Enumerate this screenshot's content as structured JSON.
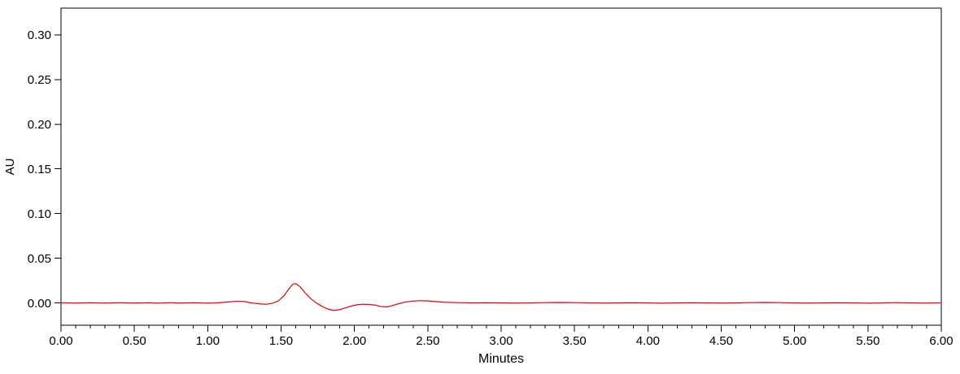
{
  "page": {
    "background_color": "#ffffff",
    "axis_color": "#000000",
    "text_color": "#000000"
  },
  "chart_data": {
    "type": "line",
    "title": "",
    "xlabel": "Minutes",
    "ylabel": "AU",
    "xlim": [
      0,
      6
    ],
    "ylim": [
      -0.025,
      0.33
    ],
    "grid": false,
    "legend": "none",
    "x_major_ticks": {
      "values": [
        0,
        0.5,
        1,
        1.5,
        2,
        2.5,
        3,
        3.5,
        4,
        4.5,
        5,
        5.5,
        6
      ],
      "labels": [
        "0.00",
        "0.50",
        "1.00",
        "1.50",
        "2.00",
        "2.50",
        "3.00",
        "3.50",
        "4.00",
        "4.50",
        "5.00",
        "5.50",
        "6.00"
      ]
    },
    "x_minor_step": 0.1,
    "y_major_ticks": {
      "values": [
        0,
        0.05,
        0.1,
        0.15,
        0.2,
        0.25,
        0.3
      ],
      "labels": [
        "0.00",
        "0.05",
        "0.10",
        "0.15",
        "0.20",
        "0.25",
        "0.30"
      ]
    },
    "series": [
      {
        "name": "detector-trace",
        "color": "#e60000",
        "points": [
          [
            0.0,
            0.0
          ],
          [
            0.05,
            0.0
          ],
          [
            0.1,
            -0.0003
          ],
          [
            0.15,
            0.0
          ],
          [
            0.2,
            0.0002
          ],
          [
            0.25,
            0.0
          ],
          [
            0.3,
            -0.0002
          ],
          [
            0.35,
            0.0
          ],
          [
            0.4,
            0.0003
          ],
          [
            0.45,
            0.0
          ],
          [
            0.5,
            -0.0002
          ],
          [
            0.55,
            0.0
          ],
          [
            0.6,
            0.0002
          ],
          [
            0.65,
            -0.0003
          ],
          [
            0.7,
            0.0
          ],
          [
            0.75,
            0.0003
          ],
          [
            0.8,
            -0.0002
          ],
          [
            0.85,
            0.0
          ],
          [
            0.9,
            0.0002
          ],
          [
            0.95,
            0.0
          ],
          [
            1.0,
            -0.0003
          ],
          [
            1.05,
            0.0
          ],
          [
            1.1,
            0.0005
          ],
          [
            1.15,
            0.0012
          ],
          [
            1.2,
            0.0018
          ],
          [
            1.25,
            0.0015
          ],
          [
            1.28,
            0.0005
          ],
          [
            1.32,
            -0.0005
          ],
          [
            1.36,
            -0.0012
          ],
          [
            1.4,
            -0.0015
          ],
          [
            1.44,
            -0.0005
          ],
          [
            1.48,
            0.002
          ],
          [
            1.52,
            0.008
          ],
          [
            1.55,
            0.015
          ],
          [
            1.58,
            0.021
          ],
          [
            1.6,
            0.0215
          ],
          [
            1.63,
            0.018
          ],
          [
            1.66,
            0.012
          ],
          [
            1.7,
            0.005
          ],
          [
            1.74,
            0.0
          ],
          [
            1.78,
            -0.004
          ],
          [
            1.82,
            -0.007
          ],
          [
            1.86,
            -0.0085
          ],
          [
            1.9,
            -0.0075
          ],
          [
            1.94,
            -0.0055
          ],
          [
            1.98,
            -0.0035
          ],
          [
            2.02,
            -0.002
          ],
          [
            2.06,
            -0.0015
          ],
          [
            2.1,
            -0.0018
          ],
          [
            2.14,
            -0.0025
          ],
          [
            2.18,
            -0.004
          ],
          [
            2.22,
            -0.0045
          ],
          [
            2.26,
            -0.003
          ],
          [
            2.3,
            -0.001
          ],
          [
            2.35,
            0.001
          ],
          [
            2.4,
            0.002
          ],
          [
            2.45,
            0.0025
          ],
          [
            2.5,
            0.0022
          ],
          [
            2.55,
            0.0015
          ],
          [
            2.6,
            0.0008
          ],
          [
            2.7,
            0.0003
          ],
          [
            2.8,
            0.0
          ],
          [
            2.9,
            0.0002
          ],
          [
            3.0,
            0.0
          ],
          [
            3.1,
            -0.0002
          ],
          [
            3.2,
            0.0
          ],
          [
            3.3,
            0.0003
          ],
          [
            3.4,
            0.0005
          ],
          [
            3.5,
            0.0003
          ],
          [
            3.6,
            0.0
          ],
          [
            3.7,
            -0.0002
          ],
          [
            3.8,
            0.0
          ],
          [
            3.9,
            0.0002
          ],
          [
            4.0,
            0.0
          ],
          [
            4.1,
            -0.0003
          ],
          [
            4.2,
            0.0
          ],
          [
            4.3,
            0.0002
          ],
          [
            4.4,
            0.0
          ],
          [
            4.5,
            -0.0002
          ],
          [
            4.6,
            0.0
          ],
          [
            4.7,
            0.0003
          ],
          [
            4.8,
            0.0005
          ],
          [
            4.9,
            0.0003
          ],
          [
            5.0,
            0.0
          ],
          [
            5.1,
            -0.0002
          ],
          [
            5.2,
            0.0
          ],
          [
            5.3,
            0.0002
          ],
          [
            5.4,
            0.0
          ],
          [
            5.5,
            -0.0003
          ],
          [
            5.6,
            0.0
          ],
          [
            5.7,
            0.0003
          ],
          [
            5.8,
            0.0
          ],
          [
            5.9,
            -0.0002
          ],
          [
            6.0,
            0.0
          ]
        ]
      }
    ]
  }
}
